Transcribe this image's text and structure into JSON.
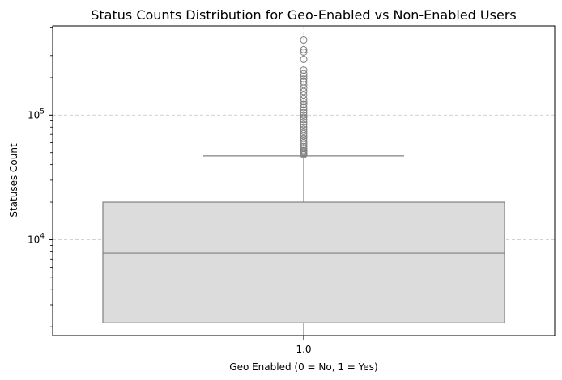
{
  "chart_data": {
    "type": "box",
    "title": "Status Counts Distribution for Geo-Enabled vs Non-Enabled Users",
    "xlabel": "Geo Enabled (0 = No, 1 = Yes)",
    "ylabel": "Statuses Count",
    "yscale": "log",
    "ylim": [
      1700,
      520000
    ],
    "grid": true,
    "categories": [
      "1.0"
    ],
    "y_ticks": [
      {
        "value": 10000,
        "base": "10",
        "exp": "4"
      },
      {
        "value": 100000,
        "base": "10",
        "exp": "5"
      }
    ],
    "boxes": [
      {
        "category": "1.0",
        "whisker_low": 1600,
        "q1": 2150,
        "median": 7800,
        "q3": 20000,
        "whisker_high": 47000,
        "outliers": [
          48000,
          49000,
          50000,
          51000,
          52000,
          54000,
          56000,
          58000,
          60000,
          62000,
          65000,
          68000,
          71000,
          74000,
          77000,
          80000,
          84000,
          88000,
          92000,
          96000,
          100000,
          105000,
          110000,
          115000,
          122000,
          128000,
          135000,
          145000,
          155000,
          165000,
          175000,
          185000,
          195000,
          205000,
          215000,
          230000,
          280000,
          320000,
          335000,
          400000
        ]
      }
    ],
    "colors": {
      "box_fill": "#dcdcdc",
      "box_line": "#808080",
      "grid": "#cccccc"
    }
  }
}
